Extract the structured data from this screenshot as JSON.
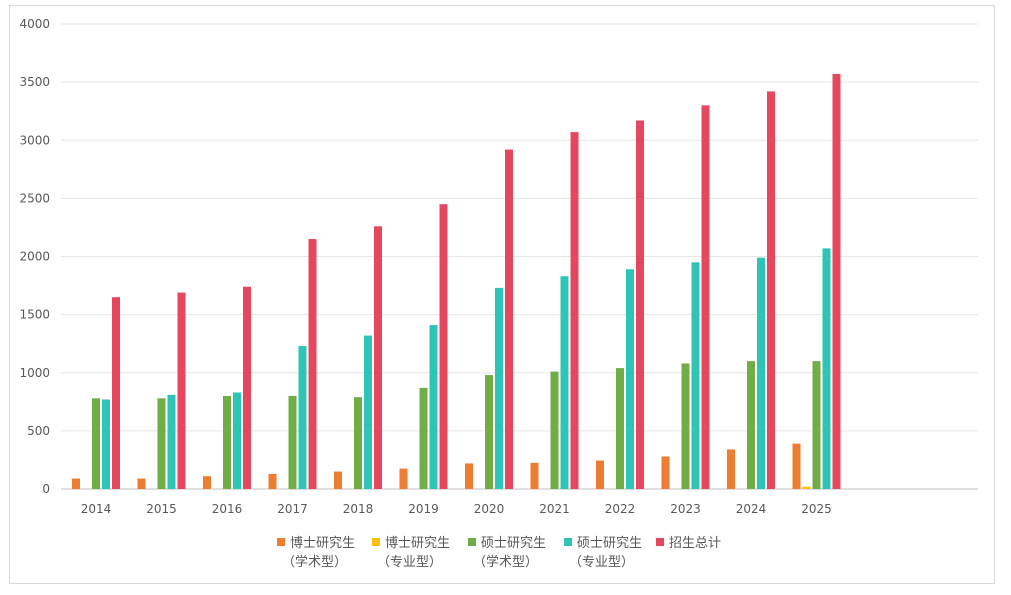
{
  "chart_data": {
    "type": "bar",
    "title": "",
    "xlabel": "",
    "ylabel": "",
    "ylim": [
      0,
      4000
    ],
    "yticks": [
      0,
      500,
      1000,
      1500,
      2000,
      2500,
      3000,
      3500,
      4000
    ],
    "grid": true,
    "legend_position": "bottom",
    "categories": [
      "2014",
      "2015",
      "2016",
      "2017",
      "2018",
      "2019",
      "2020",
      "2021",
      "2022",
      "2023",
      "2024",
      "2025"
    ],
    "series": [
      {
        "name": "博士研究生（学术型）",
        "name_lines": [
          "博士研究生",
          "（学术型）"
        ],
        "color": "#ed7d31",
        "values": [
          90,
          90,
          110,
          130,
          150,
          175,
          220,
          225,
          245,
          280,
          340,
          390
        ]
      },
      {
        "name": "博士研究生（专业型）",
        "name_lines": [
          "博士研究生",
          "（专业型）"
        ],
        "color": "#ffc000",
        "values": [
          0,
          0,
          0,
          0,
          0,
          0,
          0,
          0,
          0,
          0,
          0,
          20
        ]
      },
      {
        "name": "硕士研究生（学术型）",
        "name_lines": [
          "硕士研究生",
          "（学术型）"
        ],
        "color": "#70ad47",
        "values": [
          780,
          780,
          800,
          800,
          790,
          870,
          980,
          1010,
          1040,
          1080,
          1100,
          1100
        ]
      },
      {
        "name": "硕士研究生（专业型）",
        "name_lines": [
          "硕士研究生",
          "（专业型）"
        ],
        "color": "#2ec4b6",
        "values": [
          770,
          810,
          830,
          1230,
          1320,
          1410,
          1730,
          1830,
          1890,
          1950,
          1990,
          2070
        ]
      },
      {
        "name": "招生总计",
        "name_lines": [
          "招生总计"
        ],
        "color": "#e5485e",
        "values": [
          1650,
          1690,
          1740,
          2150,
          2260,
          2450,
          2920,
          3070,
          3170,
          3300,
          3420,
          3570
        ]
      }
    ]
  }
}
